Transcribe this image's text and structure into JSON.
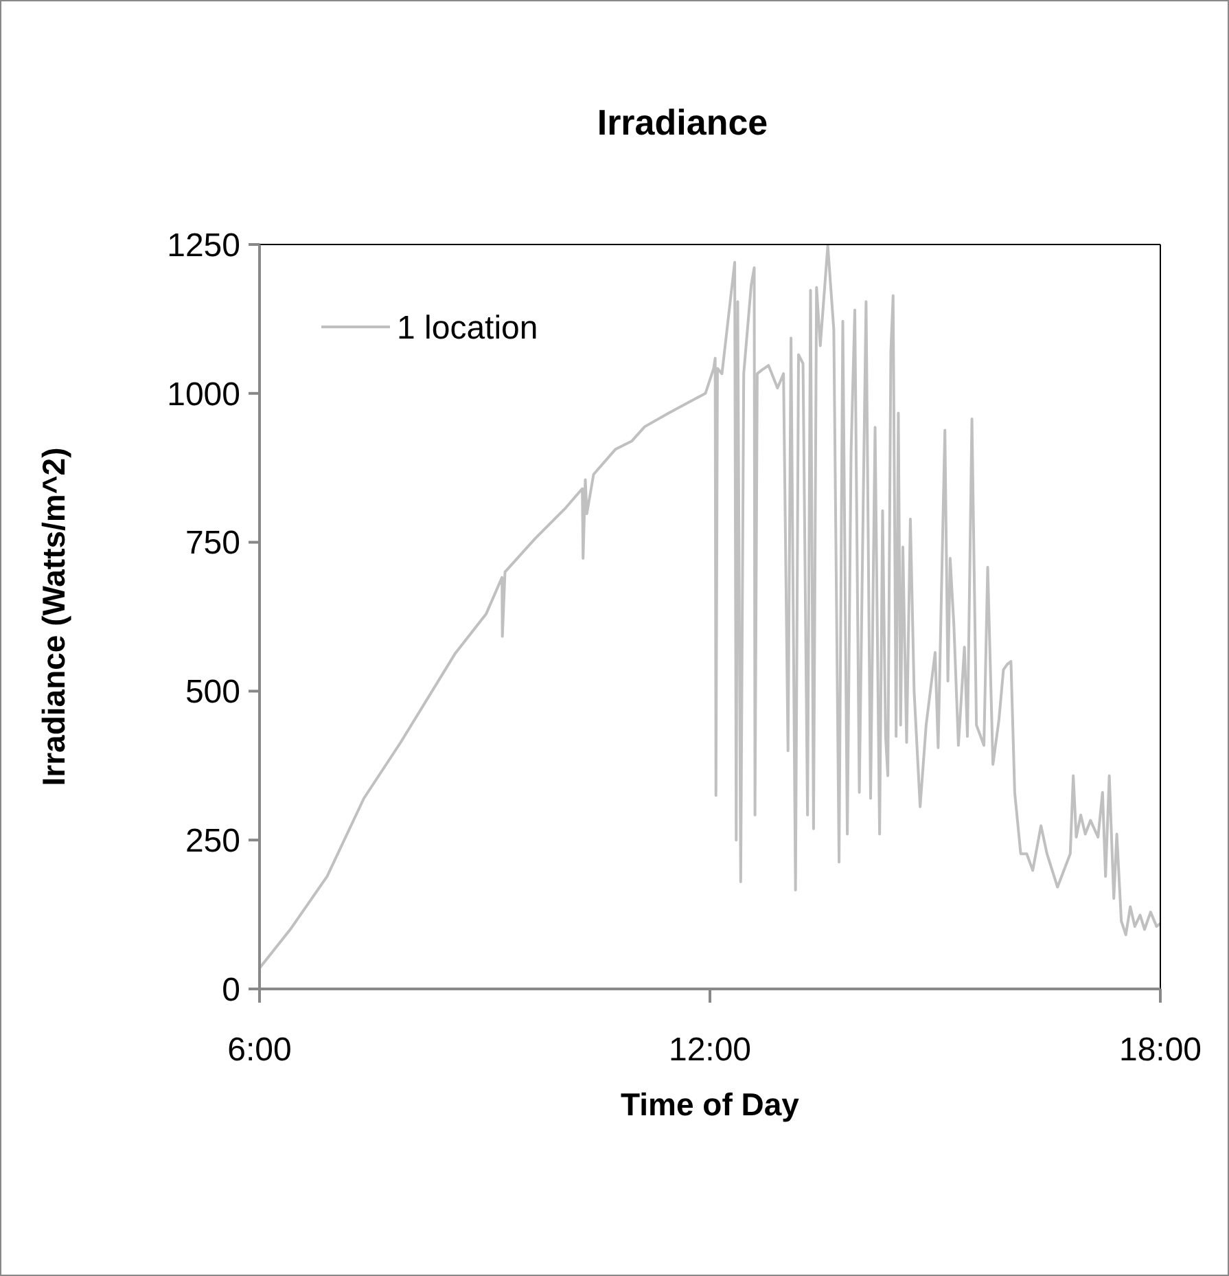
{
  "chart_data": {
    "type": "line",
    "title": "Irradiance",
    "xlabel": "Time of Day",
    "ylabel": "Irradiance (Watts/m^2)",
    "xlim": [
      6,
      18
    ],
    "xticks": [
      {
        "value": 6,
        "label": "6:00"
      },
      {
        "value": 12,
        "label": "12:00"
      },
      {
        "value": 18,
        "label": "18:00"
      }
    ],
    "ylim": [
      0,
      1250
    ],
    "yticks": [
      0,
      250,
      500,
      750,
      1000,
      1250
    ],
    "grid": false,
    "legend": "top left",
    "marker": "none",
    "line_style": "solid",
    "series": [
      {
        "name": "1 location",
        "color": "#c0c0c0",
        "x": [
          6.0,
          6.41,
          6.9,
          7.39,
          7.88,
          8.61,
          9.02,
          9.23,
          9.235,
          9.27,
          9.67,
          10.08,
          10.3,
          10.31,
          10.34,
          10.36,
          10.45,
          10.74,
          10.96,
          11.13,
          11.45,
          11.94,
          12.05,
          12.07,
          12.08,
          12.1,
          12.16,
          12.33,
          12.35,
          12.37,
          12.41,
          12.45,
          12.55,
          12.59,
          12.6,
          12.63,
          12.7,
          12.78,
          12.9,
          12.98,
          13.04,
          13.08,
          13.14,
          13.18,
          13.24,
          13.3,
          13.34,
          13.38,
          13.42,
          13.47,
          13.57,
          13.65,
          13.72,
          13.77,
          13.83,
          13.88,
          13.93,
          13.99,
          14.04,
          14.08,
          14.14,
          14.2,
          14.26,
          14.3,
          14.34,
          14.37,
          14.41,
          14.44,
          14.48,
          14.51,
          14.54,
          14.57,
          14.62,
          14.67,
          14.72,
          14.8,
          14.88,
          15.0,
          15.04,
          15.13,
          15.17,
          15.2,
          15.25,
          15.31,
          15.39,
          15.43,
          15.49,
          15.55,
          15.65,
          15.7,
          15.77,
          15.85,
          15.91,
          15.96,
          16.01,
          16.06,
          16.14,
          16.22,
          16.3,
          16.41,
          16.49,
          16.63,
          16.8,
          16.84,
          16.88,
          16.94,
          17.0,
          17.07,
          17.17,
          17.23,
          17.27,
          17.32,
          17.38,
          17.42,
          17.48,
          17.54,
          17.6,
          17.66,
          17.73,
          17.79,
          17.87,
          17.95,
          18.0
        ],
        "values": [
          35,
          100,
          189,
          320,
          414,
          564,
          630,
          691,
          592,
          700,
          756,
          808,
          840,
          723,
          855,
          798,
          864,
          906,
          920,
          944,
          967,
          1000,
          1042,
          1059,
          325,
          1042,
          1033,
          1220,
          250,
          1154,
          180,
          1033,
          1182,
          1211,
          292,
          1033,
          1040,
          1047,
          1009,
          1033,
          400,
          1093,
          166,
          1065,
          1050,
          292,
          1173,
          269,
          1178,
          1080,
          1248,
          1107,
          213,
          1121,
          260,
          901,
          1140,
          330,
          798,
          1154,
          320,
          943,
          260,
          803,
          424,
          358,
          1070,
          1164,
          424,
          967,
          443,
          742,
          414,
          789,
          500,
          306,
          443,
          565,
          405,
          938,
          517,
          723,
          610,
          409,
          574,
          424,
          957,
          443,
          409,
          708,
          377,
          452,
          536,
          545,
          550,
          330,
          227,
          227,
          199,
          274,
          227,
          171,
          227,
          358,
          255,
          292,
          260,
          283,
          255,
          330,
          189,
          358,
          152,
          260,
          114,
          91,
          138,
          105,
          124,
          100,
          129,
          105,
          110
        ]
      }
    ]
  }
}
